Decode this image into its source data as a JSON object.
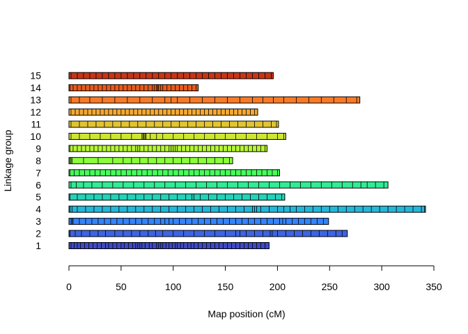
{
  "chart_data": {
    "type": "bar",
    "orientation": "horizontal",
    "xlabel": "Map position (cM)",
    "ylabel": "Linkage group",
    "xlim": [
      0,
      350
    ],
    "x_ticks": [
      0,
      50,
      100,
      150,
      200,
      250,
      300,
      350
    ],
    "grid": false,
    "legend": "none",
    "categories": [
      "1",
      "2",
      "3",
      "4",
      "5",
      "6",
      "7",
      "8",
      "9",
      "10",
      "11",
      "12",
      "13",
      "14",
      "15"
    ],
    "values": [
      192,
      267,
      249,
      342,
      207,
      306,
      202,
      157,
      190,
      208,
      201,
      181,
      279,
      124,
      196
    ],
    "colors": [
      "#3e4ac6",
      "#3c64e6",
      "#3384ff",
      "#25b7d8",
      "#22d3b8",
      "#30ec93",
      "#46ff5a",
      "#8bff3b",
      "#b6f736",
      "#cde633",
      "#e1c432",
      "#f4a932",
      "#fa7a26",
      "#ec5a1a",
      "#c93416"
    ],
    "markers": [
      [
        2,
        5,
        8,
        11,
        15,
        19,
        23,
        27,
        31,
        35,
        38,
        42,
        46,
        50,
        53,
        57,
        61,
        64,
        66,
        68,
        70,
        73,
        77,
        80,
        84,
        86,
        88,
        90,
        93,
        96,
        99,
        102,
        104,
        107,
        110,
        114,
        117,
        120,
        124,
        128,
        132,
        136,
        140,
        144,
        148,
        152,
        156,
        160,
        164,
        168,
        172,
        176,
        180,
        184,
        188
      ],
      [
        1,
        6,
        12,
        20,
        28,
        35,
        44,
        52,
        60,
        68,
        76,
        83,
        90,
        100,
        110,
        120,
        130,
        140,
        150,
        160,
        164,
        170,
        178,
        186,
        193,
        195,
        200,
        208,
        216,
        224,
        232,
        240,
        248,
        256,
        262
      ],
      [
        2,
        3,
        4,
        10,
        16,
        22,
        28,
        34,
        40,
        46,
        52,
        58,
        64,
        70,
        76,
        82,
        88,
        92,
        96,
        100,
        106,
        112,
        118,
        124,
        130,
        136,
        142,
        148,
        154,
        160,
        166,
        172,
        178,
        184,
        190,
        196,
        202,
        205,
        208,
        214,
        220,
        226,
        232,
        238,
        244
      ],
      [
        1,
        3,
        8,
        16,
        24,
        32,
        40,
        48,
        56,
        64,
        72,
        80,
        88,
        96,
        104,
        112,
        120,
        128,
        136,
        144,
        152,
        160,
        168,
        176,
        178,
        180,
        184,
        192,
        200,
        206,
        212,
        218,
        226,
        234,
        242,
        250,
        258,
        266,
        274,
        282,
        290,
        298,
        306,
        314,
        322,
        330,
        338,
        341
      ],
      [
        1,
        8,
        16,
        24,
        32,
        40,
        48,
        56,
        64,
        72,
        80,
        88,
        96,
        104,
        112,
        118,
        120,
        126,
        134,
        142,
        150,
        158,
        166,
        174,
        182,
        190,
        198,
        204
      ],
      [
        2,
        7,
        14,
        22,
        32,
        42,
        52,
        62,
        72,
        82,
        92,
        102,
        112,
        122,
        132,
        142,
        152,
        162,
        172,
        182,
        192,
        202,
        212,
        222,
        232,
        242,
        252,
        262,
        272,
        280,
        286,
        294,
        302
      ],
      [
        1,
        5,
        10,
        15,
        20,
        25,
        30,
        35,
        40,
        45,
        50,
        55,
        60,
        65,
        70,
        75,
        80,
        85,
        90,
        95,
        100,
        105,
        110,
        115,
        120,
        125,
        130,
        135,
        140,
        145,
        150,
        155,
        160,
        165,
        170,
        175,
        180,
        185,
        190,
        195,
        200
      ],
      [
        1,
        2,
        3,
        14,
        28,
        42,
        52,
        60,
        68,
        76,
        84,
        92,
        100,
        108,
        116,
        124,
        132,
        140,
        148,
        154
      ],
      [
        1,
        4,
        8,
        12,
        16,
        20,
        24,
        28,
        32,
        36,
        40,
        44,
        48,
        52,
        56,
        60,
        64,
        66,
        68,
        72,
        76,
        80,
        84,
        88,
        92,
        96,
        98,
        100,
        102,
        104,
        108,
        112,
        116,
        120,
        124,
        128,
        132,
        136,
        140,
        144,
        148,
        152,
        156,
        160,
        164,
        168,
        172,
        176,
        180,
        184,
        188
      ],
      [
        2,
        10,
        20,
        30,
        40,
        50,
        60,
        70,
        71,
        72,
        73,
        74,
        78,
        84,
        90,
        100,
        110,
        120,
        130,
        140,
        150,
        160,
        170,
        180,
        190,
        200,
        206
      ],
      [
        2,
        10,
        18,
        26,
        34,
        42,
        50,
        58,
        66,
        74,
        82,
        90,
        98,
        106,
        114,
        122,
        130,
        138,
        146,
        154,
        162,
        170,
        178,
        186,
        194,
        199
      ],
      [
        2,
        6,
        10,
        14,
        18,
        22,
        26,
        30,
        34,
        38,
        42,
        46,
        50,
        54,
        58,
        62,
        66,
        70,
        74,
        78,
        82,
        86,
        90,
        94,
        98,
        102,
        106,
        110,
        114,
        118,
        122,
        126,
        130,
        134,
        138,
        142,
        146,
        150,
        154,
        158,
        162,
        166,
        170,
        174,
        178
      ],
      [
        2,
        10,
        20,
        32,
        44,
        56,
        68,
        80,
        92,
        98,
        104,
        116,
        128,
        140,
        152,
        164,
        176,
        186,
        196,
        206,
        218,
        230,
        242,
        254,
        266,
        276
      ],
      [
        1,
        4,
        8,
        12,
        16,
        20,
        24,
        28,
        32,
        36,
        40,
        44,
        48,
        52,
        56,
        60,
        64,
        68,
        72,
        76,
        80,
        82,
        84,
        85,
        86,
        88,
        90,
        94,
        98,
        102,
        106,
        110,
        114,
        118,
        122
      ],
      [
        2,
        8,
        14,
        20,
        26,
        32,
        38,
        44,
        50,
        56,
        62,
        68,
        74,
        80,
        86,
        92,
        98,
        104,
        110,
        116,
        122,
        128,
        134,
        140,
        146,
        152,
        158,
        164,
        170,
        176,
        182,
        188,
        194
      ]
    ]
  }
}
